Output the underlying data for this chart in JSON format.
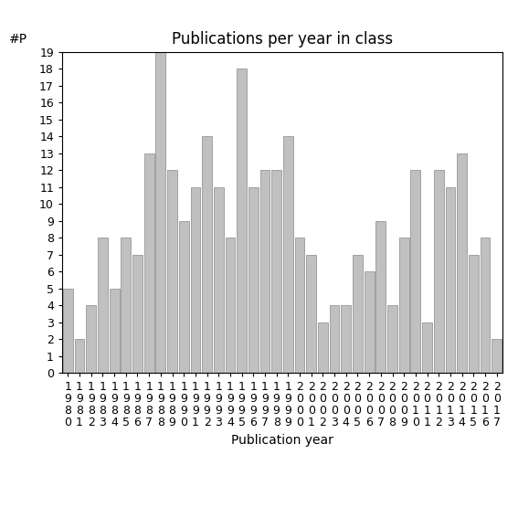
{
  "title": "Publications per year in class",
  "xlabel": "Publication year",
  "ylabel": "#P",
  "years": [
    "1980",
    "1981",
    "1982",
    "1983",
    "1984",
    "1985",
    "1986",
    "1987",
    "1988",
    "1989",
    "1990",
    "1991",
    "1992",
    "1993",
    "1994",
    "1995",
    "1996",
    "1997",
    "1998",
    "1999",
    "2000",
    "2001",
    "2002",
    "2003",
    "2004",
    "2005",
    "2006",
    "2007",
    "2008",
    "2009",
    "2010",
    "2011",
    "2012",
    "2013",
    "2014",
    "2015",
    "2016",
    "2017"
  ],
  "values": [
    5,
    2,
    4,
    8,
    5,
    8,
    7,
    13,
    19,
    12,
    9,
    11,
    14,
    11,
    8,
    18,
    11,
    12,
    12,
    14,
    8,
    7,
    3,
    4,
    4,
    7,
    6,
    9,
    4,
    8,
    12,
    3,
    12,
    11,
    13,
    7,
    8,
    2
  ],
  "bar_color": "#c0c0c0",
  "bar_edge_color": "#888888",
  "ylim": [
    0,
    19
  ],
  "yticks": [
    0,
    1,
    2,
    3,
    4,
    5,
    6,
    7,
    8,
    9,
    10,
    11,
    12,
    13,
    14,
    15,
    16,
    17,
    18,
    19
  ],
  "background_color": "#ffffff",
  "title_fontsize": 12,
  "axis_label_fontsize": 10,
  "tick_fontsize": 9
}
